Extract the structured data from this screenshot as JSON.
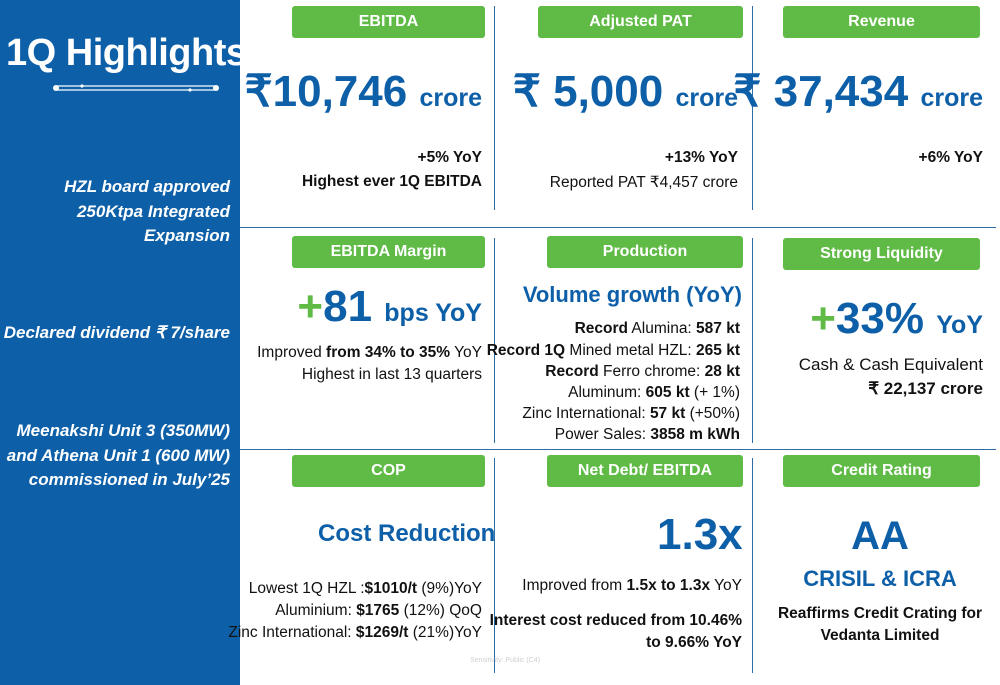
{
  "sidebar": {
    "title": "1Q Highlights",
    "items": [
      "HZL board approved 250Ktpa Integrated Expansion",
      "Declared dividend ₹ 7/share",
      "Meenakshi Unit 3 (350MW) and Athena Unit 1 (600 MW) commissioned in July’25"
    ],
    "item0_lines": [
      "HZL board approved",
      "250Ktpa Integrated",
      "Expansion"
    ],
    "item1_lines": [
      "Declared dividend ₹ 7/share"
    ],
    "item2_lines": [
      "Meenakshi Unit 3 (350MW)",
      "and Athena Unit 1 (600 MW)",
      "commissioned in July’25"
    ]
  },
  "ebitda": {
    "label": "EBITDA",
    "value": "₹10,746",
    "unit": "crore",
    "yoy": "+5% YoY",
    "note": "Highest ever 1Q EBITDA"
  },
  "pat": {
    "label": "Adjusted PAT",
    "value": "₹ 5,000",
    "unit": "crore",
    "yoy": "+13% YoY",
    "note": "Reported PAT ₹4,457 crore"
  },
  "revenue": {
    "label": "Revenue",
    "value": "₹ 37,434",
    "unit": "crore",
    "yoy": "+6% YoY"
  },
  "margin": {
    "label": "EBITDA Margin",
    "plus": "+",
    "value": "81",
    "unit": "bps YoY",
    "line1_a": "Improved ",
    "line1_b": "from 34% to 35%",
    "line1_c": " YoY",
    "line2": "Highest in last 13 quarters"
  },
  "production": {
    "label": "Production",
    "heading": "Volume growth (YoY)",
    "l1_b": "Record",
    "l1_t": " Alumina: ",
    "l1_v": "587 kt",
    "l2_b": "Record 1Q",
    "l2_t": " Mined metal HZL: ",
    "l2_v": "265 kt",
    "l3_b": "Record",
    "l3_t": " Ferro chrome: ",
    "l3_v": "28 kt",
    "l4_t": "Aluminum: ",
    "l4_v": "605 kt",
    "l4_s": " (+ 1%)",
    "l5_t": "Zinc International: ",
    "l5_v": "57 kt",
    "l5_s": " (+50%)",
    "l6_t": "Power Sales: ",
    "l6_v": "3858 m kWh"
  },
  "liquidity": {
    "label": "Strong Liquidity",
    "plus": "+",
    "value": "33%",
    "unit": "YoY",
    "line1": "Cash & Cash Equivalent",
    "line2": "₹ 22,137 crore"
  },
  "cop": {
    "label": "COP",
    "heading": "Cost Reduction",
    "l1_t": "Lowest 1Q HZL :",
    "l1_v": "$1010/t",
    "l1_s": " (9%)YoY",
    "l2_t": "Aluminium: ",
    "l2_v": "$1765",
    "l2_s": " (12%) QoQ",
    "l3_t": "Zinc International: ",
    "l3_v": "$1269/t",
    "l3_s": " (21%)YoY"
  },
  "netdebt": {
    "label": "Net Debt/ EBITDA",
    "value": "1.3x",
    "l1_t": "Improved from ",
    "l1_v": "1.5x to 1.3x",
    "l1_s": " YoY",
    "l2": "Interest cost reduced from 10.46%",
    "l3": "to 9.66% YoY"
  },
  "credit": {
    "label": "Credit Rating",
    "value": "AA",
    "agency": "CRISIL & ICRA",
    "l1": "Reaffirms Credit Crating for",
    "l2": "Vedanta Limited"
  },
  "footer": {
    "classification": "Sensitivity: Public (C4)"
  },
  "colors": {
    "brand_blue": "#0d5fa8",
    "accent_green": "#5fbb46"
  }
}
